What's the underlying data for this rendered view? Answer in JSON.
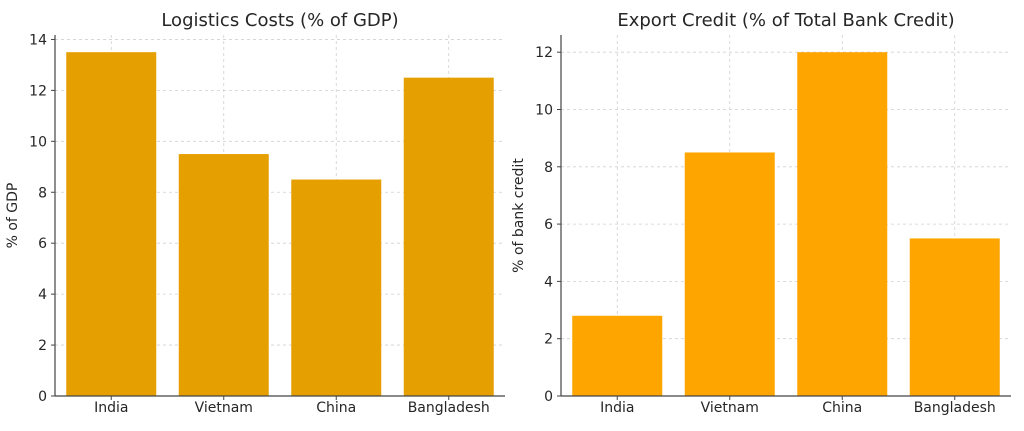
{
  "chart_data": [
    {
      "type": "bar",
      "title": "Logistics Costs (% of GDP)",
      "xlabel": "",
      "ylabel": "% of GDP",
      "categories": [
        "India",
        "Vietnam",
        "China",
        "Bangladesh"
      ],
      "values": [
        13.5,
        9.5,
        8.5,
        12.5
      ],
      "ylim": [
        0,
        14.175
      ],
      "yticks": [
        0,
        2,
        4,
        6,
        8,
        10,
        12,
        14
      ],
      "grid": true,
      "color": "#E69F00"
    },
    {
      "type": "bar",
      "title": "Export Credit (% of Total Bank Credit)",
      "xlabel": "",
      "ylabel": "% of bank credit",
      "categories": [
        "India",
        "Vietnam",
        "China",
        "Bangladesh"
      ],
      "values": [
        2.8,
        8.5,
        12.0,
        5.5
      ],
      "ylim": [
        0,
        12.6
      ],
      "yticks": [
        0,
        2,
        4,
        6,
        8,
        10,
        12
      ],
      "grid": true,
      "color": "#FFA500"
    }
  ]
}
